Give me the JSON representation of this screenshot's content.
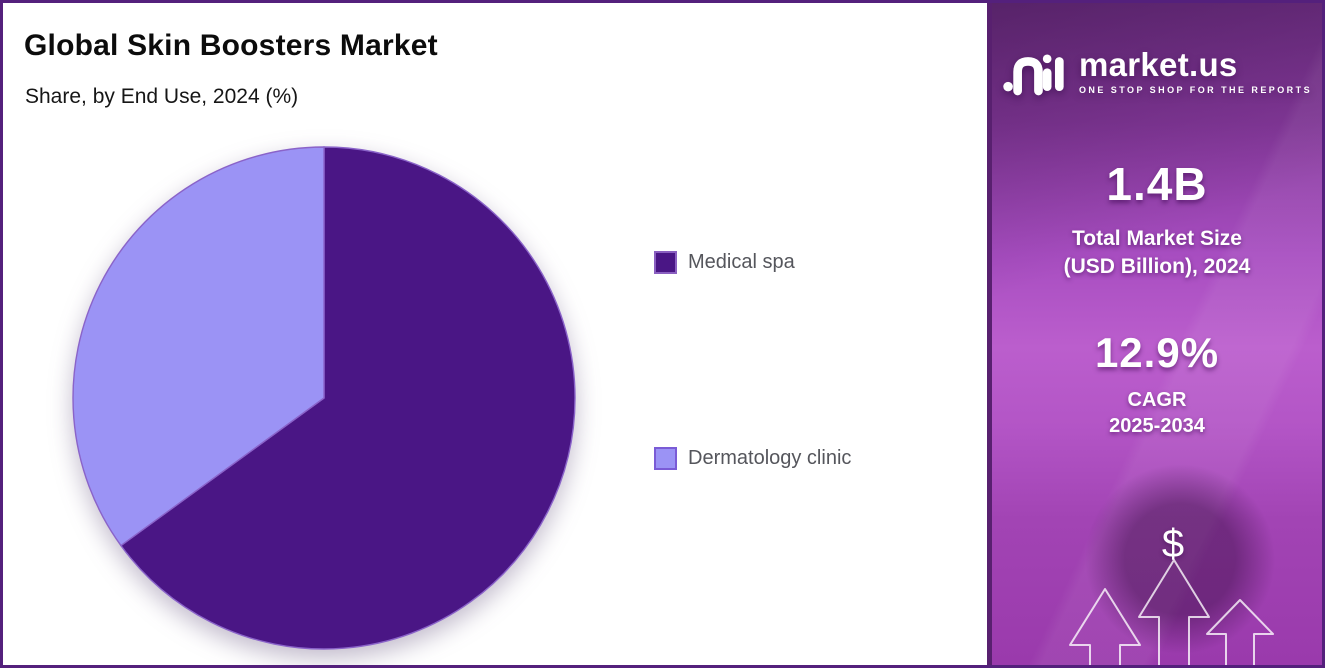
{
  "header": {
    "title": "Global Skin Boosters Market",
    "subtitle": "Share, by End Use, 2024 (%)"
  },
  "chart_data": {
    "type": "pie",
    "title": "Global Skin Boosters Market — Share, by End Use, 2024 (%)",
    "labels": [
      "Medical spa",
      "Dermatology clinic"
    ],
    "values": [
      65,
      35
    ],
    "unit": "% share",
    "colors": [
      "#4a1685",
      "#9b93f5"
    ],
    "swatch_border_colors": [
      "#8a5fc0",
      "#7a5bd6"
    ],
    "slice_stroke": "#8a63c9",
    "start_angle_deg": 0,
    "direction": "clockwise",
    "legend_position": "right",
    "data_labels_shown": false
  },
  "sidebar": {
    "brand": {
      "name": "market.us",
      "tagline": "ONE STOP SHOP FOR THE REPORTS"
    },
    "market_size": {
      "value": "1.4B",
      "label_line1": "Total Market Size",
      "label_line2": "(USD Billion), 2024"
    },
    "cagr": {
      "value": "12.9%",
      "label_line1": "CAGR",
      "label_line2": "2025-2034"
    },
    "dollar_symbol": "$"
  }
}
